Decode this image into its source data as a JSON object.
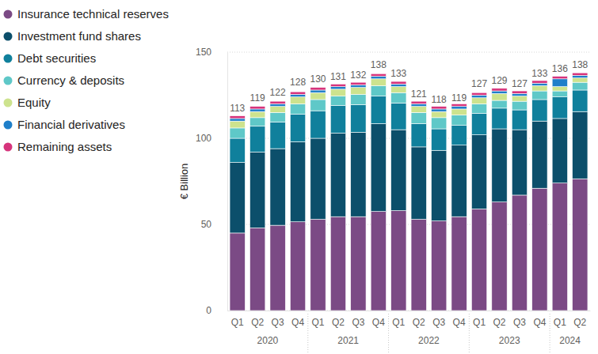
{
  "chart_data": {
    "type": "bar",
    "stacked": true,
    "grid": true,
    "legend": "left",
    "y_label": "€ Billion",
    "categories": [
      "Q1",
      "Q2",
      "Q3",
      "Q4",
      "Q1",
      "Q2",
      "Q3",
      "Q4",
      "Q1",
      "Q2",
      "Q3",
      "Q4",
      "Q1",
      "Q2",
      "Q3",
      "Q4",
      "Q1",
      "Q2"
    ],
    "years": [
      "2020",
      "2020",
      "2020",
      "2020",
      "2021",
      "2021",
      "2021",
      "2021",
      "2022",
      "2022",
      "2022",
      "2022",
      "2023",
      "2023",
      "2023",
      "2023",
      "2024",
      "2024"
    ],
    "ylim": [
      0,
      150
    ],
    "yticks": [
      0,
      50,
      100,
      150
    ],
    "totals": [
      113,
      119,
      122,
      128,
      130,
      131,
      132,
      138,
      133,
      121,
      118,
      119,
      127,
      129,
      127,
      133,
      136,
      138
    ],
    "series": [
      {
        "name": "Insurance technical reserves",
        "color": "#7b4a85",
        "values": [
          45,
          48,
          49.5,
          51.5,
          53,
          54.5,
          54.5,
          57.5,
          58,
          53,
          52,
          54.5,
          59,
          63,
          67,
          71,
          74,
          76.5
        ]
      },
      {
        "name": "Investment fund shares",
        "color": "#0c4f6b",
        "values": [
          41,
          44,
          44.5,
          46.5,
          47,
          48.5,
          49,
          51,
          47,
          42,
          41,
          41.5,
          43,
          42.5,
          38,
          39,
          37.5,
          39
        ]
      },
      {
        "name": "Debt securities",
        "color": "#10809c",
        "values": [
          14,
          15,
          15.5,
          16,
          16,
          16,
          16,
          16,
          15.5,
          13.5,
          12.5,
          11.5,
          12.5,
          12,
          11.5,
          12.5,
          12.5,
          12.5
        ]
      },
      {
        "name": "Currency & deposits",
        "color": "#5fc8c8",
        "values": [
          6,
          5,
          5.5,
          6,
          6.5,
          5.5,
          6,
          6,
          6,
          6.5,
          6.5,
          6,
          5.5,
          4.5,
          5,
          5,
          3.5,
          4.5
        ]
      },
      {
        "name": "Equity",
        "color": "#cde38e",
        "values": [
          4,
          3.5,
          3.5,
          4,
          4,
          4,
          4,
          4,
          3.5,
          3.5,
          3.5,
          3.5,
          3.5,
          4,
          3,
          3,
          2.5,
          2.5
        ]
      },
      {
        "name": "Financial derivatives",
        "color": "#1f7fc9",
        "values": [
          1.5,
          1.5,
          1.5,
          1.5,
          1.5,
          1.5,
          1.5,
          1.5,
          1.5,
          1.5,
          1.5,
          1.5,
          1.5,
          1.5,
          1.5,
          1.5,
          4.5,
          1.5
        ]
      },
      {
        "name": "Remaining assets",
        "color": "#d6347c",
        "values": [
          1.5,
          1.5,
          1.5,
          1.5,
          1.5,
          1.5,
          1.5,
          1.5,
          1.5,
          1.5,
          1.5,
          1.5,
          1.5,
          1.5,
          1.5,
          1.5,
          1.5,
          1.5
        ]
      }
    ]
  }
}
